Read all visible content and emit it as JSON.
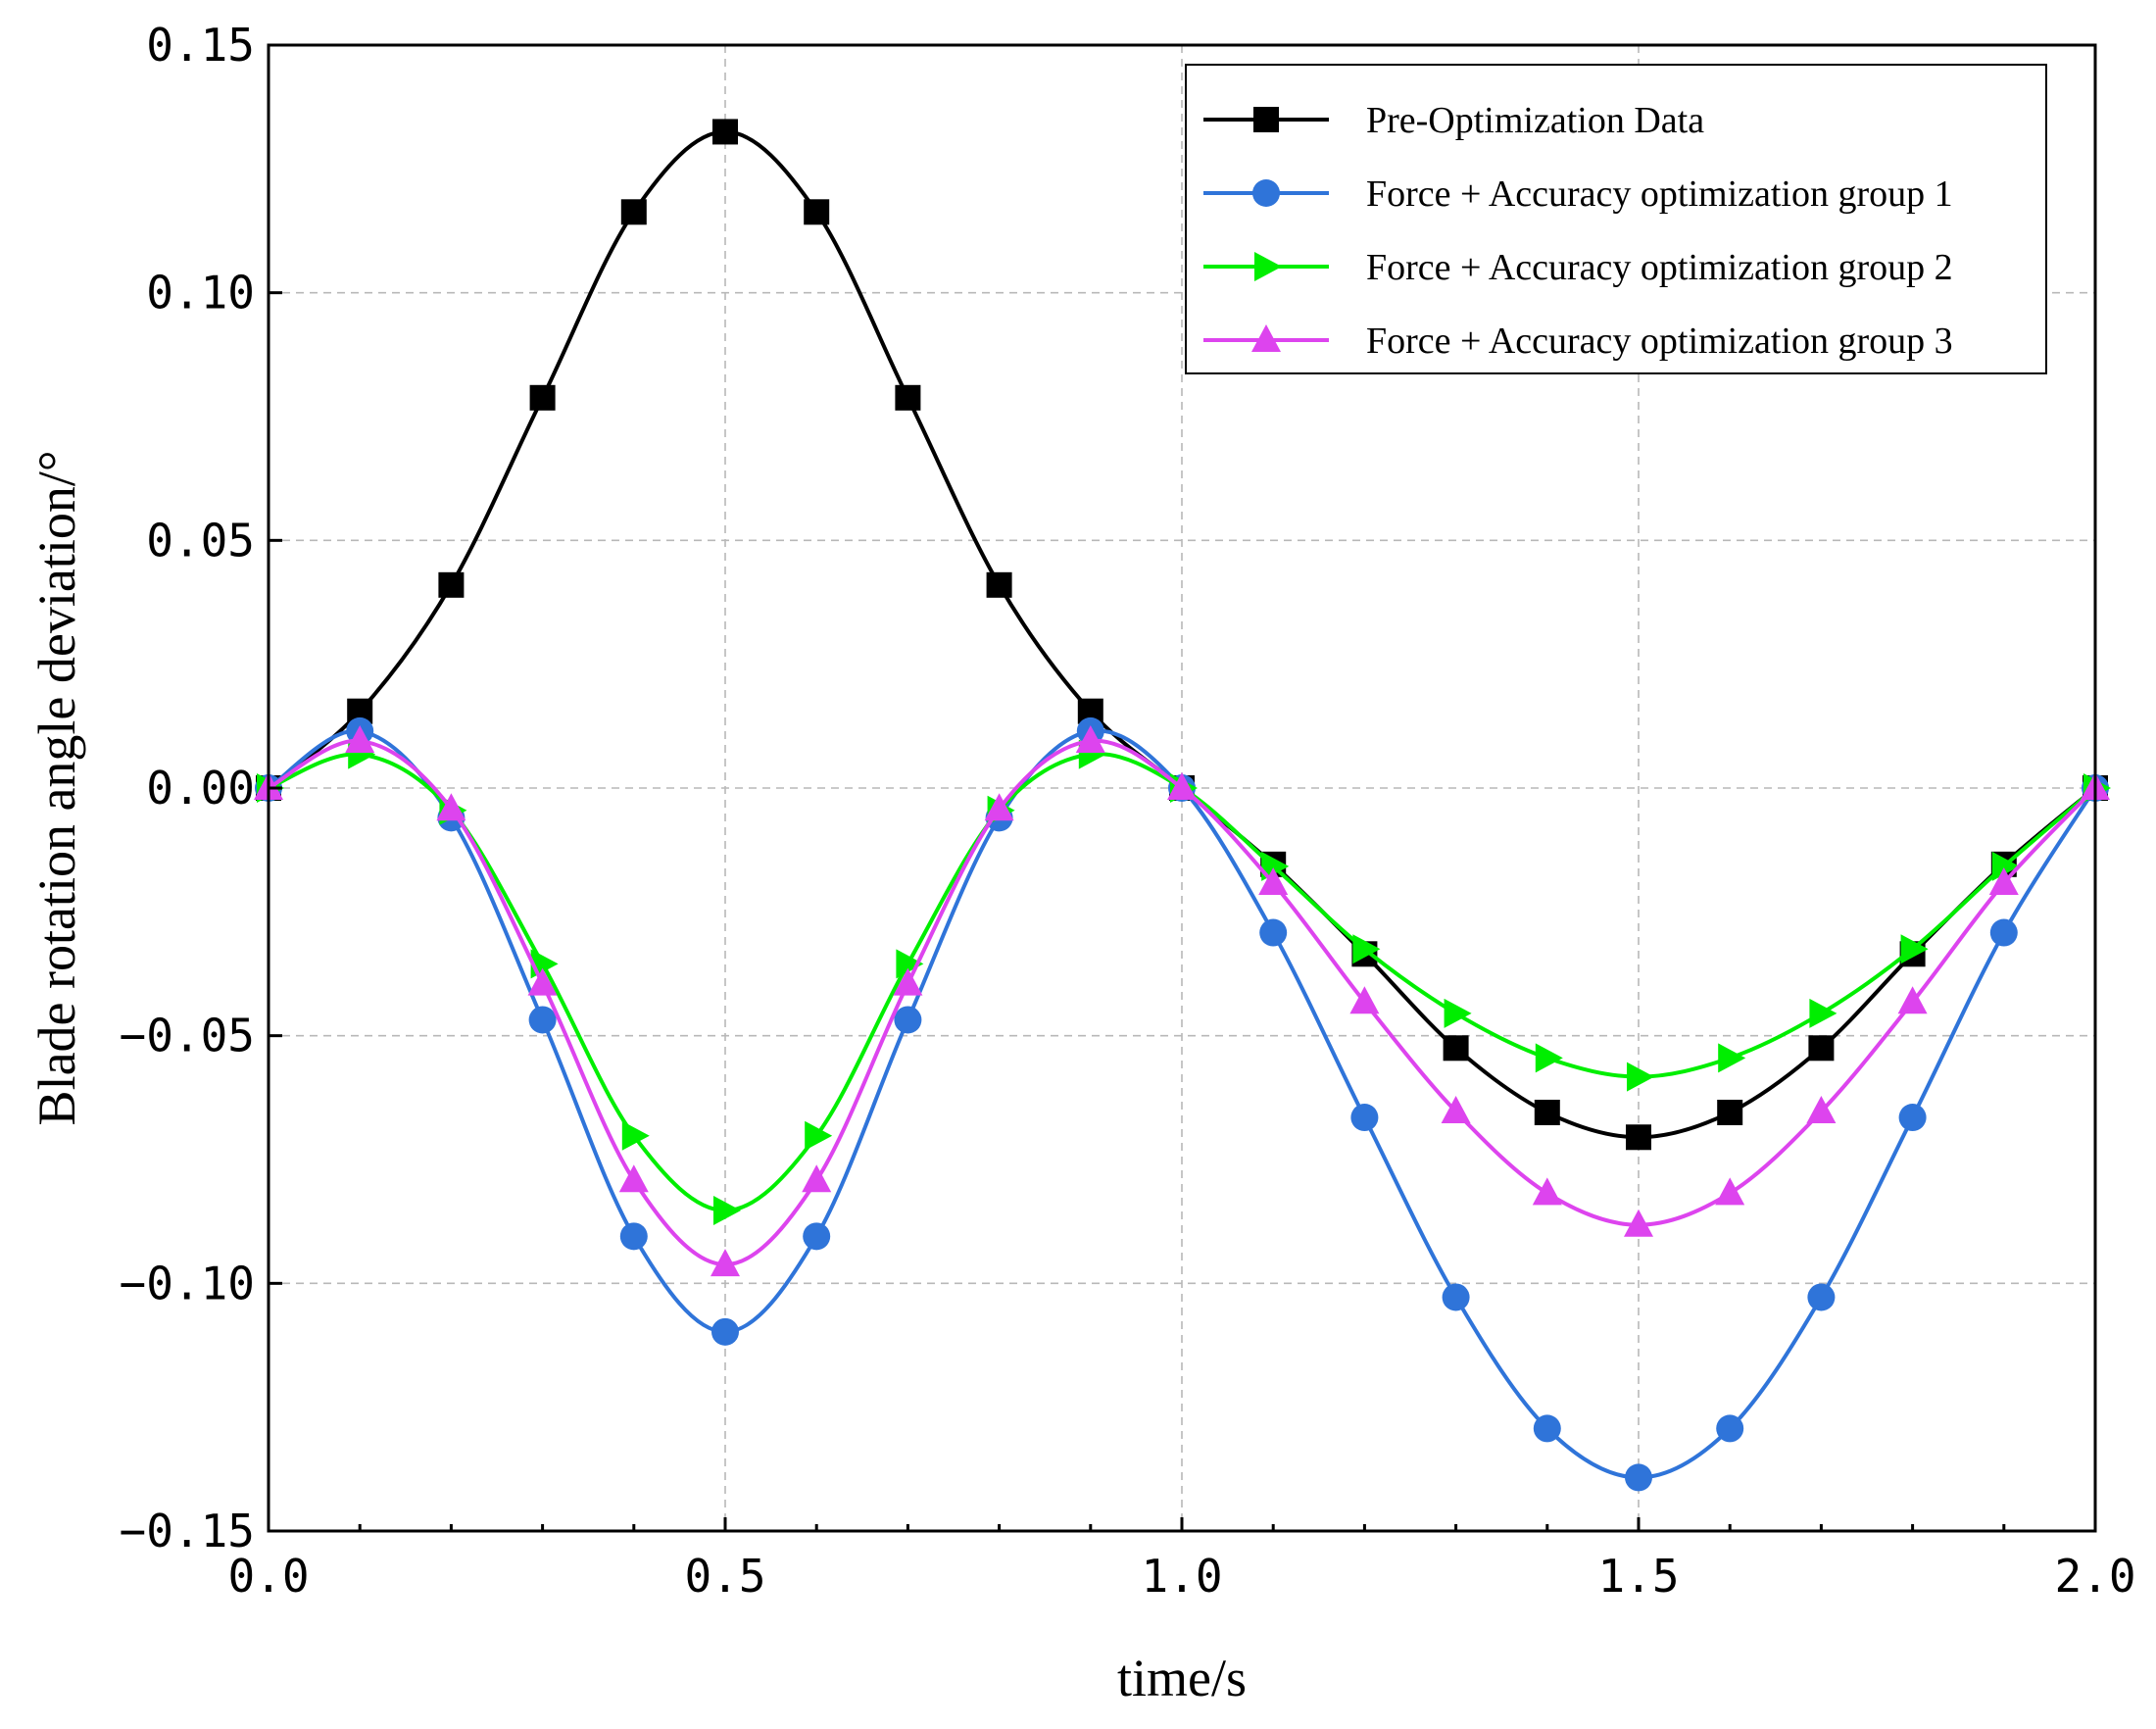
{
  "chart_data": {
    "type": "line",
    "title": "",
    "xlabel": "time/s",
    "ylabel": "Blade rotation angle deviation/°",
    "xlim": [
      0.0,
      2.0
    ],
    "ylim": [
      -0.15,
      0.15
    ],
    "xticks": [
      0.0,
      0.5,
      1.0,
      1.5,
      2.0
    ],
    "xtick_labels": [
      "0.0",
      "0.5",
      "1.0",
      "1.5",
      "2.0"
    ],
    "yticks": [
      -0.15,
      -0.1,
      -0.05,
      0.0,
      0.05,
      0.1,
      0.15
    ],
    "ytick_labels": [
      "−0.15",
      "−0.10",
      "−0.05",
      "0.00",
      "0.05",
      "0.10",
      "0.15"
    ],
    "grid": true,
    "legend_position": "top-right",
    "x": [
      0.0,
      0.1,
      0.2,
      0.3,
      0.4,
      0.5,
      0.6,
      0.7,
      0.8,
      0.9,
      1.0,
      1.1,
      1.2,
      1.3,
      1.4,
      1.5,
      1.6,
      1.7,
      1.8,
      1.9,
      2.0
    ],
    "series": [
      {
        "name": "Pre-Optimization Data",
        "color": "#000000",
        "marker": "square",
        "values": [
          0.0,
          0.0155,
          0.041,
          0.0788,
          0.1163,
          0.1325,
          0.1163,
          0.0788,
          0.041,
          0.0155,
          0.0,
          -0.0154,
          -0.0335,
          -0.0525,
          -0.0655,
          -0.0705,
          -0.0655,
          -0.0525,
          -0.0335,
          -0.0154,
          0.0
        ]
      },
      {
        "name": "Force + Accuracy optimization group 1",
        "color": "#2f74d9",
        "marker": "circle",
        "values": [
          0.0,
          0.0115,
          -0.006,
          -0.0468,
          -0.0905,
          -0.1098,
          -0.0905,
          -0.0468,
          -0.006,
          0.0115,
          0.0,
          -0.0292,
          -0.0665,
          -0.1028,
          -0.1293,
          -0.1392,
          -0.1293,
          -0.1028,
          -0.0665,
          -0.0292,
          0.0
        ]
      },
      {
        "name": "Force + Accuracy optimization group 2",
        "color": "#00ee00",
        "marker": "triangle-right",
        "values": [
          0.0,
          0.0068,
          -0.0045,
          -0.0355,
          -0.0702,
          -0.0853,
          -0.0702,
          -0.0355,
          -0.0045,
          0.0068,
          0.0,
          -0.0158,
          -0.0325,
          -0.0455,
          -0.0545,
          -0.0583,
          -0.0545,
          -0.0455,
          -0.0325,
          -0.0158,
          0.0
        ]
      },
      {
        "name": "Force + Accuracy optimization group 3",
        "color": "#dd44ee",
        "marker": "triangle-up",
        "values": [
          0.0,
          0.0095,
          -0.0042,
          -0.0395,
          -0.0792,
          -0.0962,
          -0.0792,
          -0.0395,
          -0.0042,
          0.0095,
          0.0,
          -0.0192,
          -0.0432,
          -0.0653,
          -0.0818,
          -0.0882,
          -0.0818,
          -0.0653,
          -0.0432,
          -0.0192,
          0.0
        ]
      }
    ]
  }
}
